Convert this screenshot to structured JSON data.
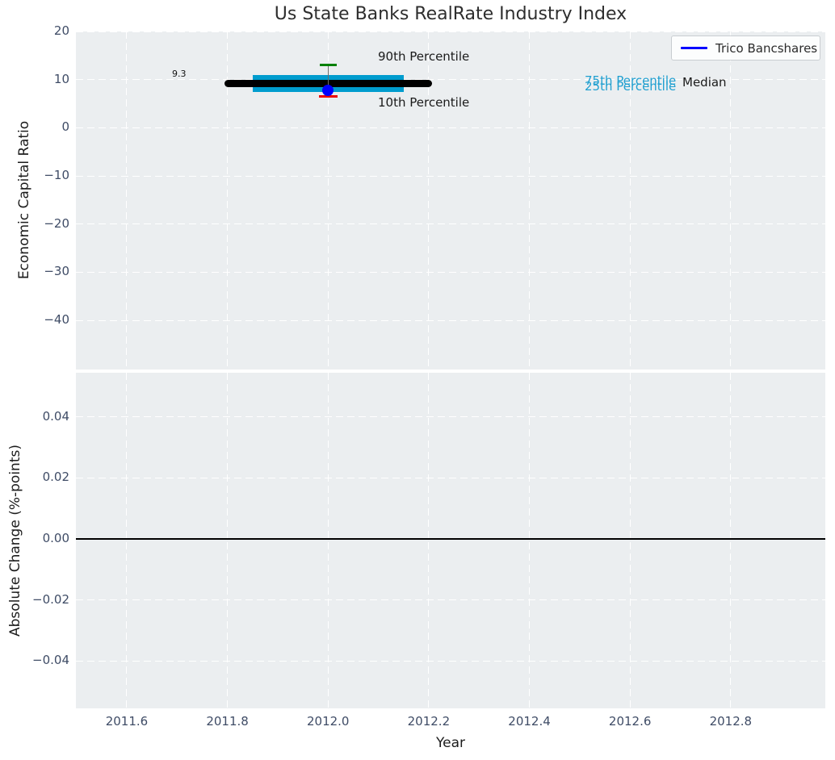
{
  "title": "Us State Banks RealRate Industry Index",
  "xlabel": "Year",
  "legend": {
    "label": "Trico Bancshares"
  },
  "top_plot": {
    "ylabel": "Economic Capital Ratio",
    "annotations": {
      "p90": "90th Percentile",
      "p10": "10th Percentile",
      "p75": "75th Percentile",
      "p25": "25th Percentile",
      "median": "Median",
      "median_value": "9.3"
    }
  },
  "bottom_plot": {
    "ylabel": "Absolute Change (%-points)"
  },
  "colors": {
    "plot_bg": "#ebeef0",
    "grid": "#ffffff",
    "tick_label": "#3f4c66",
    "percentile_band": "#009cce",
    "percentile_text": "#1f9fd0",
    "median_line": "#000000",
    "p90_marker": "#008000",
    "p10_marker": "#ee0000",
    "series_line": "#0000ff"
  },
  "chart_data": [
    {
      "type": "box",
      "title": "Us State Banks RealRate Industry Index",
      "xlabel": "Year",
      "ylabel": "Economic Capital Ratio",
      "xlim": [
        2011.499,
        2012.988
      ],
      "ylim": [
        -50.2,
        20
      ],
      "xticks": [
        2011.6,
        2011.8,
        2012.0,
        2012.2,
        2012.4,
        2012.6,
        2012.8
      ],
      "yticks": [
        20,
        10,
        0,
        -10,
        -20,
        -30,
        -40
      ],
      "grid": true,
      "legend_position": "upper right",
      "industry_percentiles": {
        "year": 2012,
        "p90": 13.1,
        "p75": 11.0,
        "median": 9.3,
        "p25": 7.45,
        "p10": 6.55
      },
      "median_label": "9.3",
      "median_span_x": [
        2011.8,
        2012.2
      ],
      "band_span_x": [
        2011.85,
        2012.15
      ],
      "series": [
        {
          "name": "Trico Bancshares",
          "x": [
            2012.0
          ],
          "values": [
            7.75
          ]
        }
      ]
    },
    {
      "type": "line",
      "xlabel": "Year",
      "ylabel": "Absolute Change (%-points)",
      "xlim": [
        2011.499,
        2012.988
      ],
      "ylim": [
        -0.0555,
        0.0545
      ],
      "xticks": [
        2011.6,
        2011.8,
        2012.0,
        2012.2,
        2012.4,
        2012.6,
        2012.8
      ],
      "yticks": [
        0.04,
        0.02,
        0,
        -0.02,
        -0.04
      ],
      "grid": true,
      "axhline": 0.0,
      "series": []
    }
  ]
}
